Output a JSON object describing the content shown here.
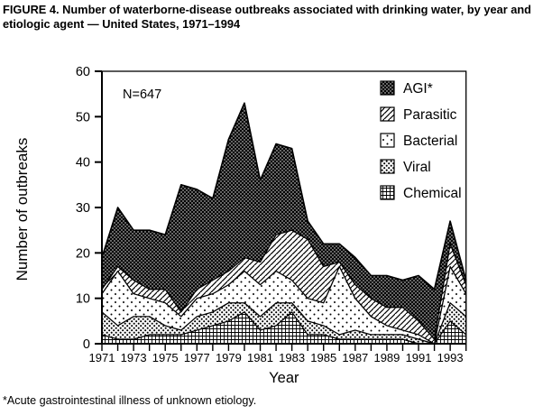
{
  "figure": {
    "title": "FIGURE 4. Number of waterborne-disease outbreaks associated with drinking water, by year and etiologic agent — United States, 1971–1994",
    "footnote": "*Acute gastrointestinal illness of unknown etiology."
  },
  "colors": {
    "ink": "#000000",
    "background": "#ffffff"
  },
  "chart_data": {
    "type": "area",
    "stacked": true,
    "xlabel": "Year",
    "ylabel": "Number of outbreaks",
    "annotation": "N=647",
    "n_total": 647,
    "ylim": [
      0,
      60
    ],
    "yticks": [
      0,
      10,
      20,
      30,
      40,
      50,
      60
    ],
    "x": [
      1971,
      1972,
      1973,
      1974,
      1975,
      1976,
      1977,
      1978,
      1979,
      1980,
      1981,
      1982,
      1983,
      1984,
      1985,
      1986,
      1987,
      1988,
      1989,
      1990,
      1991,
      1992,
      1993,
      1994
    ],
    "x_tick_labels": [
      "1971",
      "1973",
      "1975",
      "1977",
      "1979",
      "1981",
      "1983",
      "1985",
      "1987",
      "1989",
      "1991",
      "1993"
    ],
    "series": [
      {
        "name": "Chemical",
        "key": "chemical",
        "pattern": "fine-grid",
        "values": [
          2,
          1,
          1,
          2,
          2,
          2,
          3,
          4,
          5,
          7,
          3,
          4,
          7,
          2,
          2,
          1,
          1,
          1,
          1,
          1,
          0,
          0,
          5,
          2
        ]
      },
      {
        "name": "Viral",
        "key": "viral",
        "pattern": "dense-dots",
        "values": [
          5,
          3,
          5,
          4,
          2,
          1,
          3,
          3,
          4,
          2,
          3,
          5,
          2,
          3,
          2,
          1,
          2,
          1,
          1,
          1,
          1,
          0,
          4,
          4
        ]
      },
      {
        "name": "Bacterial",
        "key": "bacterial",
        "pattern": "sparse-dots",
        "values": [
          4,
          12,
          5,
          4,
          5,
          3,
          4,
          4,
          4,
          7,
          7,
          7,
          5,
          5,
          5,
          15,
          7,
          4,
          2,
          1,
          1,
          0,
          8,
          5
        ]
      },
      {
        "name": "Parasitic",
        "key": "parasitic",
        "pattern": "diagonal-hatch",
        "values": [
          1,
          1,
          3,
          2,
          3,
          1,
          2,
          3,
          3,
          3,
          5,
          8,
          11,
          13,
          8,
          1,
          3,
          4,
          4,
          5,
          3,
          1,
          5,
          2
        ]
      },
      {
        "name": "AGI*",
        "key": "agi",
        "pattern": "black-white-dots",
        "values": [
          7,
          13,
          11,
          13,
          12,
          28,
          22,
          18,
          29,
          34,
          18,
          20,
          18,
          4,
          5,
          4,
          6,
          5,
          7,
          6,
          10,
          11,
          5,
          1
        ]
      }
    ],
    "legend": [
      {
        "label": "AGI*",
        "key": "agi"
      },
      {
        "label": "Parasitic",
        "key": "parasitic"
      },
      {
        "label": "Bacterial",
        "key": "bacterial"
      },
      {
        "label": "Viral",
        "key": "viral"
      },
      {
        "label": "Chemical",
        "key": "chemical"
      }
    ],
    "legend_position": "top-right",
    "grid": false
  }
}
